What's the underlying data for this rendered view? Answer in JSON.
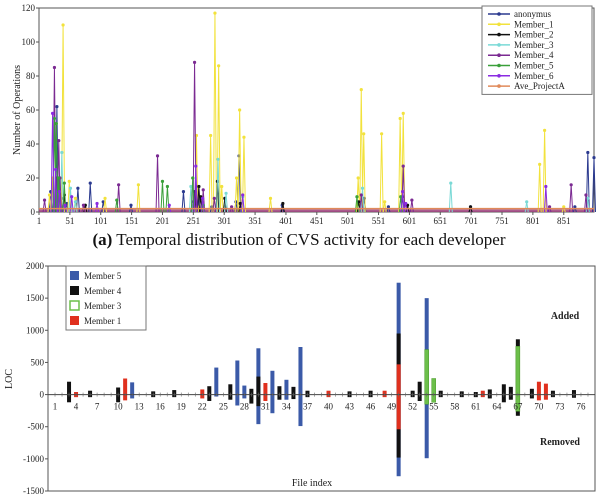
{
  "caption": {
    "label": "(a)",
    "text": "Temporal distribution of CVS activity for each developer"
  },
  "chart_data": [
    {
      "type": "line",
      "ylabel": "Number of Operations",
      "ylim": [
        0,
        120
      ],
      "yticks": [
        0,
        20,
        40,
        60,
        80,
        100,
        120
      ],
      "xlim": [
        1,
        900
      ],
      "xticks": [
        1,
        51,
        101,
        151,
        201,
        251,
        301,
        351,
        401,
        451,
        501,
        551,
        601,
        651,
        701,
        751,
        801,
        851
      ],
      "legend_position": "top-right",
      "series": [
        {
          "name": "anonymus",
          "color": "#2b3a8f",
          "points": [
            [
              20,
              12
            ],
            [
              30,
              62
            ],
            [
              37,
              8
            ],
            [
              46,
              5
            ],
            [
              64,
              14
            ],
            [
              84,
              17
            ],
            [
              105,
              6
            ],
            [
              150,
              4
            ],
            [
              235,
              12
            ],
            [
              251,
              6
            ],
            [
              258,
              15
            ],
            [
              281,
              3
            ],
            [
              320,
              6
            ],
            [
              325,
              33
            ],
            [
              395,
              4
            ],
            [
              528,
              8
            ],
            [
              567,
              3
            ],
            [
              590,
              9
            ],
            [
              700,
              3
            ],
            [
              869,
              3
            ],
            [
              890,
              35
            ],
            [
              900,
              32
            ]
          ]
        },
        {
          "name": "Member_1",
          "color": "#f2e23c",
          "points": [
            [
              18,
              10
            ],
            [
              23,
              20
            ],
            [
              31,
              18
            ],
            [
              40,
              110
            ],
            [
              50,
              18
            ],
            [
              60,
              8
            ],
            [
              108,
              8
            ],
            [
              162,
              16
            ],
            [
              256,
              45
            ],
            [
              258,
              3
            ],
            [
              279,
              45
            ],
            [
              286,
              117
            ],
            [
              292,
              86
            ],
            [
              297,
              15
            ],
            [
              321,
              20
            ],
            [
              326,
              60
            ],
            [
              333,
              44
            ],
            [
              376,
              8
            ],
            [
              518,
              20
            ],
            [
              523,
              72
            ],
            [
              527,
              46
            ],
            [
              556,
              46
            ],
            [
              561,
              6
            ],
            [
              586,
              55
            ],
            [
              591,
              58
            ],
            [
              812,
              28
            ],
            [
              820,
              48
            ],
            [
              851,
              3
            ]
          ]
        },
        {
          "name": "Member_2",
          "color": "#111111",
          "points": [
            [
              30,
              20
            ],
            [
              42,
              10
            ],
            [
              76,
              4
            ],
            [
              253,
              12
            ],
            [
              260,
              15
            ],
            [
              263,
              9
            ],
            [
              290,
              18
            ],
            [
              302,
              8
            ],
            [
              327,
              5
            ],
            [
              396,
              5
            ],
            [
              519,
              6
            ],
            [
              598,
              4
            ],
            [
              700,
              3
            ]
          ]
        },
        {
          "name": "Member_3",
          "color": "#7ad9d6",
          "points": [
            [
              38,
              35
            ],
            [
              52,
              14
            ],
            [
              60,
              6
            ],
            [
              247,
              15
            ],
            [
              291,
              31
            ],
            [
              304,
              11
            ],
            [
              331,
              9
            ],
            [
              525,
              14
            ],
            [
              668,
              17
            ],
            [
              791,
              6
            ],
            [
              890,
              8
            ]
          ]
        },
        {
          "name": "Member_4",
          "color": "#7b2a92",
          "points": [
            [
              10,
              7
            ],
            [
              26,
              85
            ],
            [
              33,
              42
            ],
            [
              35,
              20
            ],
            [
              73,
              4
            ],
            [
              130,
              16
            ],
            [
              193,
              33
            ],
            [
              253,
              88
            ],
            [
              267,
              13
            ],
            [
              285,
              8
            ],
            [
              313,
              3
            ],
            [
              523,
              10
            ],
            [
              591,
              27
            ],
            [
              605,
              7
            ],
            [
              828,
              3
            ],
            [
              863,
              16
            ],
            [
              887,
              10
            ]
          ]
        },
        {
          "name": "Member_5",
          "color": "#3aa03a",
          "points": [
            [
              26,
              55
            ],
            [
              29,
              52
            ],
            [
              33,
              20
            ],
            [
              42,
              17
            ],
            [
              127,
              7
            ],
            [
              201,
              18
            ],
            [
              209,
              15
            ],
            [
              250,
              20
            ],
            [
              267,
              4
            ],
            [
              516,
              9
            ],
            [
              587,
              9
            ]
          ]
        },
        {
          "name": "Member_6",
          "color": "#8a2be2",
          "points": [
            [
              23,
              58
            ],
            [
              28,
              25
            ],
            [
              34,
              12
            ],
            [
              43,
              4
            ],
            [
              54,
              9
            ],
            [
              95,
              5
            ],
            [
              212,
              4
            ],
            [
              255,
              27
            ],
            [
              266,
              8
            ],
            [
              331,
              10
            ],
            [
              590,
              12
            ],
            [
              595,
              5
            ],
            [
              822,
              15
            ]
          ]
        },
        {
          "name": "Ave_ProjectA",
          "color": "#e08a5a",
          "points": [
            [
              1,
              2
            ],
            [
              900,
              2
            ]
          ]
        }
      ]
    },
    {
      "type": "bar",
      "xlabel": "File index",
      "ylabel": "LOC",
      "ylim": [
        -1500,
        2000
      ],
      "yticks": [
        -1500,
        -1000,
        -500,
        0,
        500,
        1000,
        1500,
        2000
      ],
      "xticks": [
        1,
        4,
        7,
        10,
        13,
        16,
        19,
        22,
        25,
        28,
        31,
        34,
        37,
        40,
        43,
        46,
        49,
        52,
        55,
        58,
        61,
        64,
        67,
        70,
        73,
        76
      ],
      "xlim": [
        0,
        78
      ],
      "annotations": [
        "Added",
        "Removed"
      ],
      "legend_position": "top-left",
      "legend": [
        {
          "name": "Member 5",
          "color": "#3b5aa8",
          "marker": "filled"
        },
        {
          "name": "Member 4",
          "color": "#111111",
          "marker": "filled"
        },
        {
          "name": "Member 3",
          "color": "#6cbf4a",
          "marker": "hollow"
        },
        {
          "name": "Member 1",
          "color": "#e0301e",
          "marker": "filled"
        }
      ],
      "bars": [
        {
          "file": 3,
          "color": "#111111",
          "top": 200,
          "bottom": -120
        },
        {
          "file": 4,
          "color": "#e0301e",
          "top": 40,
          "bottom": -40
        },
        {
          "file": 6,
          "color": "#111111",
          "top": 60,
          "bottom": -40
        },
        {
          "file": 10,
          "color": "#111111",
          "top": 110,
          "bottom": -120
        },
        {
          "file": 11,
          "color": "#e0301e",
          "top": 250,
          "bottom": -90
        },
        {
          "file": 12,
          "color": "#3b5aa8",
          "top": 190,
          "bottom": -60
        },
        {
          "file": 15,
          "color": "#111111",
          "top": 50,
          "bottom": -40
        },
        {
          "file": 18,
          "color": "#111111",
          "top": 70,
          "bottom": -40
        },
        {
          "file": 22,
          "color": "#e0301e",
          "top": 80,
          "bottom": -60
        },
        {
          "file": 23,
          "color": "#111111",
          "top": 130,
          "bottom": -100
        },
        {
          "file": 24,
          "color": "#3b5aa8",
          "top": 420,
          "bottom": -30
        },
        {
          "file": 26,
          "color": "#111111",
          "top": 160,
          "bottom": -80
        },
        {
          "file": 27,
          "color": "#3b5aa8",
          "top": 530,
          "bottom": -170
        },
        {
          "file": 28,
          "color": "#3b5aa8",
          "top": 140,
          "bottom": -60
        },
        {
          "file": 29,
          "color": "#111111",
          "top": 90,
          "bottom": -140
        },
        {
          "file": 30,
          "color": "#3b5aa8",
          "top": 720,
          "bottom": -460
        },
        {
          "file": 30,
          "color": "#111111",
          "top": 280,
          "bottom": -180
        },
        {
          "file": 31,
          "color": "#e0301e",
          "top": 180,
          "bottom": -100
        },
        {
          "file": 32,
          "color": "#3b5aa8",
          "top": 370,
          "bottom": -290
        },
        {
          "file": 33,
          "color": "#111111",
          "top": 130,
          "bottom": -80
        },
        {
          "file": 34,
          "color": "#3b5aa8",
          "top": 230,
          "bottom": -80
        },
        {
          "file": 35,
          "color": "#111111",
          "top": 120,
          "bottom": -70
        },
        {
          "file": 36,
          "color": "#3b5aa8",
          "top": 740,
          "bottom": -490
        },
        {
          "file": 37,
          "color": "#111111",
          "top": 60,
          "bottom": -40
        },
        {
          "file": 40,
          "color": "#e0301e",
          "top": 60,
          "bottom": -40
        },
        {
          "file": 43,
          "color": "#111111",
          "top": 50,
          "bottom": -40
        },
        {
          "file": 46,
          "color": "#111111",
          "top": 60,
          "bottom": -40
        },
        {
          "file": 48,
          "color": "#e0301e",
          "top": 60,
          "bottom": -40
        },
        {
          "file": 50,
          "color": "#3b5aa8",
          "top": 1740,
          "bottom": -1270
        },
        {
          "file": 50,
          "color": "#111111",
          "top": 950,
          "bottom": -980
        },
        {
          "file": 50,
          "color": "#e0301e",
          "top": 470,
          "bottom": -540
        },
        {
          "file": 52,
          "color": "#111111",
          "top": 60,
          "bottom": -40
        },
        {
          "file": 53,
          "color": "#111111",
          "top": 200,
          "bottom": -100
        },
        {
          "file": 54,
          "color": "#3b5aa8",
          "top": 1500,
          "bottom": -990
        },
        {
          "file": 54,
          "color": "#6cbf4a",
          "top": 700,
          "bottom": -150
        },
        {
          "file": 55,
          "color": "#6cbf4a",
          "top": 250,
          "bottom": -120
        },
        {
          "file": 56,
          "color": "#111111",
          "top": 60,
          "bottom": -40
        },
        {
          "file": 59,
          "color": "#111111",
          "top": 50,
          "bottom": -40
        },
        {
          "file": 61,
          "color": "#111111",
          "top": 40,
          "bottom": -40
        },
        {
          "file": 62,
          "color": "#e0301e",
          "top": 60,
          "bottom": -40
        },
        {
          "file": 63,
          "color": "#111111",
          "top": 80,
          "bottom": -60
        },
        {
          "file": 65,
          "color": "#111111",
          "top": 160,
          "bottom": -120
        },
        {
          "file": 66,
          "color": "#111111",
          "top": 120,
          "bottom": -80
        },
        {
          "file": 67,
          "color": "#111111",
          "top": 860,
          "bottom": -330
        },
        {
          "file": 67,
          "color": "#6cbf4a",
          "top": 750,
          "bottom": -260
        },
        {
          "file": 69,
          "color": "#111111",
          "top": 90,
          "bottom": -60
        },
        {
          "file": 70,
          "color": "#e0301e",
          "top": 200,
          "bottom": -90
        },
        {
          "file": 71,
          "color": "#e0301e",
          "top": 170,
          "bottom": -80
        },
        {
          "file": 72,
          "color": "#111111",
          "top": 60,
          "bottom": -40
        },
        {
          "file": 75,
          "color": "#111111",
          "top": 70,
          "bottom": -50
        }
      ]
    }
  ]
}
